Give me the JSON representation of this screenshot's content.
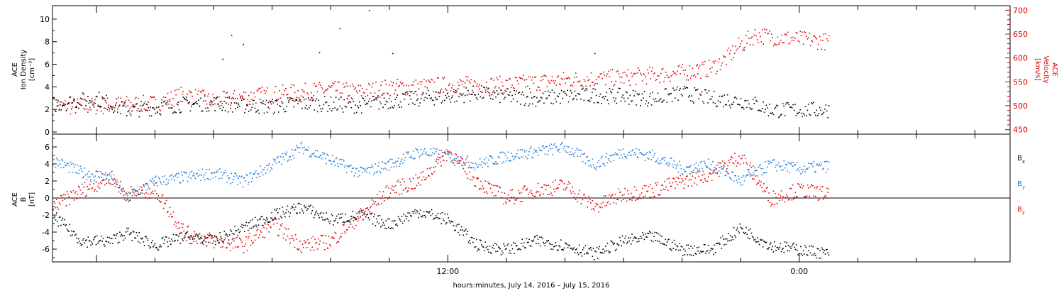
{
  "chart_data": [
    {
      "panel": "plasma",
      "type": "scatter",
      "left_axis": {
        "label_lines": [
          "ACE",
          "Ion Density",
          "[cm⁻³]"
        ],
        "range": [
          0,
          11
        ],
        "ticks": [
          0,
          2,
          4,
          6,
          8,
          10
        ],
        "color": "#000000"
      },
      "right_axis": {
        "label_lines": [
          "ACE",
          "Velocity",
          "[km/s]"
        ],
        "range": [
          445,
          705
        ],
        "ticks": [
          450,
          500,
          550,
          600,
          650,
          700
        ],
        "color": "#e00000"
      },
      "x_unit": "hours since 2016-07-14 00:00",
      "series": [
        {
          "axis": "left",
          "color": "#000000",
          "x": [
            -1.5,
            0.0,
            1.0,
            2.0,
            3.0,
            4.0,
            5.0,
            6.0,
            7.0,
            8.0,
            9.0,
            10.0,
            11.0,
            12.0,
            13.0,
            14.0,
            15.0,
            16.0,
            17.0,
            18.0,
            19.0,
            20.0,
            21.0,
            22.0,
            22.5,
            23.0,
            24.0,
            25.0
          ],
          "y": [
            2.5,
            3.0,
            2.0,
            2.2,
            2.5,
            2.6,
            2.4,
            2.3,
            2.6,
            2.5,
            2.4,
            2.8,
            3.0,
            3.2,
            3.5,
            3.2,
            3.0,
            3.2,
            3.3,
            3.2,
            3.0,
            3.5,
            3.0,
            2.8,
            2.5,
            2.0,
            2.0,
            2.0
          ],
          "spikes": [
            [
              4.3,
              6.5
            ],
            [
              4.6,
              8.6
            ],
            [
              5.0,
              7.8
            ],
            [
              7.6,
              7.1
            ],
            [
              8.3,
              9.2
            ],
            [
              9.3,
              10.8
            ],
            [
              10.1,
              7.0
            ],
            [
              17.0,
              7.0
            ],
            [
              20.5,
              6.0
            ],
            [
              22.1,
              7.3
            ]
          ]
        },
        {
          "axis": "right",
          "color": "#e00000",
          "x": [
            -1.5,
            0.0,
            1.0,
            2.0,
            3.0,
            4.0,
            5.0,
            6.0,
            7.0,
            8.0,
            9.0,
            10.0,
            11.0,
            12.0,
            13.0,
            14.0,
            15.0,
            16.0,
            17.0,
            18.0,
            19.0,
            20.0,
            21.0,
            21.5,
            22.0,
            22.5,
            23.0,
            24.0,
            25.0
          ],
          "y": [
            500,
            500,
            505,
            505,
            525,
            510,
            520,
            525,
            530,
            535,
            530,
            540,
            540,
            545,
            545,
            545,
            550,
            555,
            558,
            560,
            565,
            570,
            580,
            600,
            630,
            650,
            645,
            640,
            635
          ]
        }
      ]
    },
    {
      "panel": "imf",
      "type": "scatter",
      "left_axis": {
        "label_lines": [
          "ACE",
          "B",
          "[nT]"
        ],
        "range": [
          -7.5,
          7.5
        ],
        "ticks": [
          -6,
          -4,
          -2,
          0,
          2,
          4,
          6
        ]
      },
      "x_unit": "hours since 2016-07-14 00:00",
      "legend": [
        "Bx",
        "By",
        "Bz"
      ],
      "series": [
        {
          "name": "Bx",
          "color": "#000000",
          "x": [
            -1.5,
            -0.5,
            0.5,
            1.0,
            2.0,
            3.0,
            4.0,
            5.0,
            6.0,
            7.0,
            8.0,
            9.0,
            10.0,
            11.0,
            12.0,
            13.0,
            14.0,
            15.0,
            16.0,
            17.0,
            18.0,
            19.0,
            20.0,
            21.0,
            22.0,
            23.0,
            24.0,
            25.0
          ],
          "y": [
            -2.0,
            -5.0,
            -5.0,
            -4.0,
            -5.5,
            -4.5,
            -5.0,
            -3.5,
            -2.0,
            -1.0,
            -2.5,
            -2.0,
            -3.0,
            -1.5,
            -2.5,
            -5.5,
            -6.0,
            -5.0,
            -5.5,
            -6.5,
            -5.0,
            -4.5,
            -6.0,
            -6.0,
            -3.5,
            -5.5,
            -6.0,
            -6.5
          ]
        },
        {
          "name": "By",
          "color": "#1e7ad6",
          "x": [
            -1.5,
            -0.5,
            0.5,
            1.0,
            2.0,
            3.0,
            4.0,
            5.0,
            6.0,
            7.0,
            8.0,
            9.0,
            10.0,
            11.0,
            12.0,
            13.0,
            14.0,
            15.0,
            16.0,
            17.0,
            18.0,
            19.0,
            20.0,
            21.0,
            22.0,
            23.0,
            24.0,
            25.0
          ],
          "y": [
            4.5,
            3.0,
            2.5,
            0.0,
            2.0,
            2.5,
            3.0,
            2.0,
            4.0,
            6.0,
            4.5,
            3.0,
            4.0,
            5.5,
            5.0,
            4.0,
            5.0,
            5.5,
            6.0,
            4.0,
            5.5,
            5.0,
            3.5,
            4.0,
            2.0,
            4.0,
            3.5,
            3.8
          ]
        },
        {
          "name": "Bz",
          "color": "#e00000",
          "x": [
            -1.5,
            -0.5,
            0.5,
            1.0,
            2.0,
            3.0,
            4.0,
            5.0,
            6.0,
            7.0,
            8.0,
            9.0,
            10.0,
            11.0,
            12.0,
            13.0,
            14.0,
            15.0,
            16.0,
            17.0,
            18.0,
            19.0,
            20.0,
            21.0,
            22.0,
            23.0,
            24.0,
            25.0
          ],
          "y": [
            -1.0,
            1.0,
            2.5,
            0.5,
            1.0,
            -4.0,
            -5.0,
            -5.5,
            -3.0,
            -5.5,
            -5.0,
            -2.0,
            1.0,
            2.0,
            5.5,
            2.0,
            0.0,
            1.0,
            1.5,
            -1.0,
            0.5,
            1.0,
            2.0,
            3.0,
            5.0,
            0.0,
            1.0,
            0.5
          ]
        }
      ]
    }
  ],
  "x_axis": {
    "tick_labels": [
      "12:00",
      "0:00"
    ],
    "title": "hours:minutes, July 14, 2016 – July 15, 2016"
  }
}
